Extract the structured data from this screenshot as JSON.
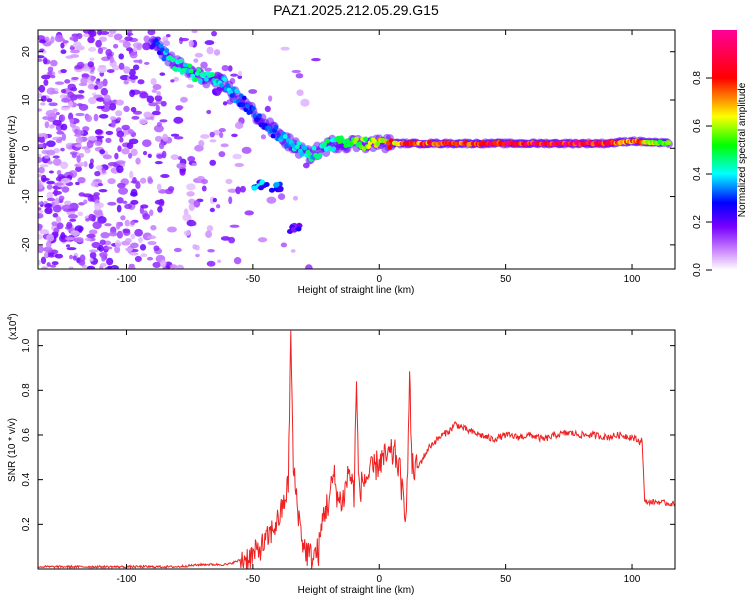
{
  "figure": {
    "title": "PAZ1.2025.212.05.29.G15"
  },
  "chart_data": [
    {
      "type": "heatmap",
      "xlabel": "Height of straight line (km)",
      "ylabel": "Frequency (Hz)",
      "xlim": [
        -135,
        117
      ],
      "ylim": [
        -25,
        24.5
      ],
      "x_ticks": [
        -100,
        -50,
        0,
        50,
        100
      ],
      "y_ticks": [
        -20,
        -10,
        0,
        10,
        20
      ],
      "x_tick_labels": [
        "-100",
        "-50",
        "0",
        "50",
        "100"
      ],
      "y_tick_labels": [
        "-20",
        "-10",
        "0",
        "10",
        "20"
      ],
      "colorbar": {
        "label": "Normalized spectral amplitude",
        "range": [
          0,
          1
        ],
        "ticks": [
          0.0,
          0.2,
          0.4,
          0.6,
          0.8
        ],
        "tick_labels": [
          "0.0",
          "0.2",
          "0.4",
          "0.6",
          "0.8"
        ],
        "colormap": [
          "#ffffff",
          "#9900ff",
          "#0000ff",
          "#00ffff",
          "#00ff00",
          "#ffff00",
          "#ff0000",
          "#ff00aa"
        ]
      },
      "ridge": [
        {
          "x": -90,
          "y": 22,
          "amp": 0.25
        },
        {
          "x": -82,
          "y": 18,
          "amp": 0.45
        },
        {
          "x": -72,
          "y": 15,
          "amp": 0.5
        },
        {
          "x": -62,
          "y": 13.5,
          "amp": 0.45
        },
        {
          "x": -55,
          "y": 10,
          "amp": 0.35
        },
        {
          "x": -47,
          "y": 6,
          "amp": 0.3
        },
        {
          "x": -38,
          "y": 2,
          "amp": 0.4
        },
        {
          "x": -28,
          "y": -1.5,
          "amp": 0.45
        },
        {
          "x": -18,
          "y": 1,
          "amp": 0.5
        },
        {
          "x": -8,
          "y": 1,
          "amp": 0.6
        },
        {
          "x": 0,
          "y": 1,
          "amp": 0.7
        },
        {
          "x": 10,
          "y": 1,
          "amp": 0.85
        },
        {
          "x": 50,
          "y": 1,
          "amp": 0.95
        },
        {
          "x": 90,
          "y": 1,
          "amp": 0.95
        },
        {
          "x": 100,
          "y": 1.5,
          "amp": 0.8
        },
        {
          "x": 115,
          "y": 1,
          "amp": 0.6
        }
      ],
      "secondary_features": [
        {
          "x": -47,
          "y": -7.5,
          "amp": 0.4
        },
        {
          "x": -40,
          "y": -8,
          "amp": 0.35
        },
        {
          "x": -33,
          "y": -16.5,
          "amp": 0.25
        }
      ]
    },
    {
      "type": "line",
      "xlabel": "Height of straight line (km)",
      "ylabel": "SNR (10 * v/v)",
      "y_exponent_label": "(x10",
      "y_exponent_power": "4",
      "y_exponent_close": ")",
      "xlim": [
        -135,
        117
      ],
      "ylim": [
        0,
        1.07
      ],
      "x_ticks": [
        -100,
        -50,
        0,
        50,
        100
      ],
      "y_ticks": [
        0.2,
        0.4,
        0.6,
        0.8,
        1.0
      ],
      "x_tick_labels": [
        "-100",
        "-50",
        "0",
        "50",
        "100"
      ],
      "y_tick_labels": [
        "0.2",
        "0.4",
        "0.6",
        "0.8",
        "1.0"
      ],
      "color": "#ee2222",
      "series": [
        {
          "x": [
            -135,
            -110,
            -80,
            -70,
            -60,
            -55,
            -50,
            -45,
            -42,
            -40,
            -38,
            -36,
            -35,
            -34,
            -32,
            -30,
            -27,
            -24,
            -22,
            -20,
            -18,
            -16,
            -14,
            -12,
            -10,
            -9,
            -8,
            -6,
            -4,
            -2,
            0,
            3,
            6,
            8,
            10,
            11,
            12,
            13,
            15,
            20,
            25,
            28,
            30,
            35,
            40,
            45,
            50,
            55,
            60,
            65,
            70,
            75,
            80,
            85,
            90,
            95,
            100,
            103,
            104,
            105,
            110,
            117
          ],
          "y": [
            0.01,
            0.01,
            0.01,
            0.02,
            0.02,
            0.04,
            0.06,
            0.12,
            0.18,
            0.22,
            0.28,
            0.38,
            1.05,
            0.45,
            0.25,
            0.1,
            0.05,
            0.08,
            0.25,
            0.3,
            0.42,
            0.3,
            0.32,
            0.45,
            0.34,
            0.82,
            0.35,
            0.4,
            0.42,
            0.45,
            0.48,
            0.5,
            0.52,
            0.45,
            0.25,
            0.35,
            0.85,
            0.45,
            0.45,
            0.55,
            0.6,
            0.62,
            0.65,
            0.62,
            0.6,
            0.58,
            0.6,
            0.59,
            0.6,
            0.58,
            0.6,
            0.61,
            0.6,
            0.6,
            0.59,
            0.6,
            0.59,
            0.57,
            0.58,
            0.3,
            0.3,
            0.29
          ]
        }
      ]
    }
  ]
}
